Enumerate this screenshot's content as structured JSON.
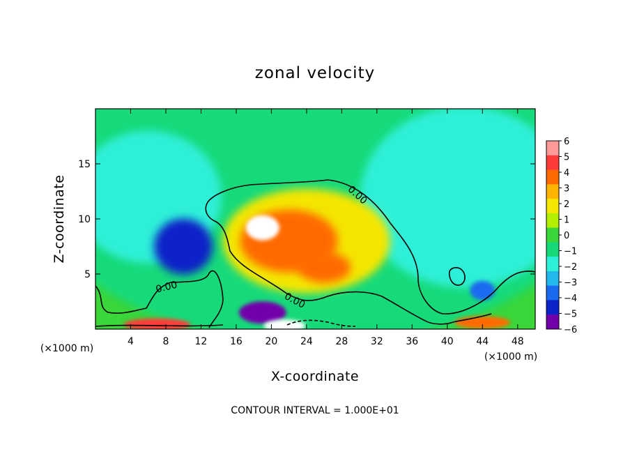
{
  "chart_data": {
    "type": "heatmap",
    "title": "zonal velocity",
    "xlabel": "X-coordinate",
    "ylabel": "Z-coordinate",
    "x_unit": "(×1000 m)",
    "xlim": [
      0,
      50
    ],
    "ylim": [
      0,
      20
    ],
    "x_ticks": [
      "4",
      "8",
      "12",
      "16",
      "20",
      "24",
      "28",
      "32",
      "36",
      "40",
      "44",
      "48"
    ],
    "y_ticks": [
      "5",
      "10",
      "15"
    ],
    "colorbar": {
      "ticks": [
        "6",
        "5",
        "4",
        "3",
        "2",
        "1",
        "0",
        "−1",
        "−2",
        "−3",
        "−4",
        "−5",
        "−6"
      ],
      "colors": [
        "#ff9a9a",
        "#ff3a3a",
        "#ff6a00",
        "#ffb400",
        "#f4e600",
        "#b4ef00",
        "#3ad63a",
        "#16da7a",
        "#2ef0d8",
        "#22b8ee",
        "#1a6af0",
        "#0a22c8",
        "#7200aa"
      ]
    },
    "contour_labels": [
      "0.00",
      "0.00",
      "0.00"
    ],
    "note": "CONTOUR INTERVAL = 1.000E+01",
    "features": [
      {
        "name": "background",
        "x": 25,
        "z": 15,
        "value": -0.5
      },
      {
        "name": "eastern-upper",
        "x": 42,
        "z": 12,
        "value": -1.6
      },
      {
        "name": "western-cyan",
        "x": 6,
        "z": 12,
        "value": -1.8
      },
      {
        "name": "western-jet-core",
        "x": 10,
        "z": 7.5,
        "value": -5.2
      },
      {
        "name": "central-jet-outer",
        "x": 24,
        "z": 8,
        "value": 2.0
      },
      {
        "name": "central-jet",
        "x": 22,
        "z": 8,
        "value": 4.0
      },
      {
        "name": "central-jet-core",
        "x": 19,
        "z": 9.2,
        "value": 6.0
      },
      {
        "name": "lower-jet",
        "x": 26,
        "z": 5.6,
        "value": 4.5
      },
      {
        "name": "eastern-blue-blob",
        "x": 44,
        "z": 3.5,
        "value": -3.5
      },
      {
        "name": "surface-west",
        "x": 7,
        "z": 0.4,
        "value": 5.5
      },
      {
        "name": "surface-centre-blue",
        "x": 19,
        "z": 1.5,
        "value": -5.5
      },
      {
        "name": "surface-centre-core",
        "x": 21.5,
        "z": 0.3,
        "value": 6.0
      },
      {
        "name": "surface-east",
        "x": 44,
        "z": 0.6,
        "value": 4.5
      }
    ]
  }
}
